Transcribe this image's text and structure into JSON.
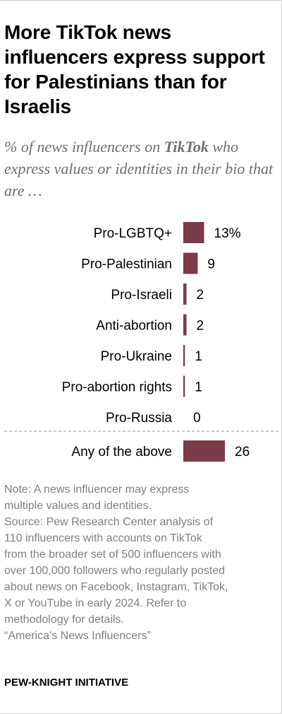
{
  "title": "More TikTok news influencers express support for Palestinians than for Israelis",
  "subtitle": {
    "prefix": "% of news influencers on ",
    "emphasis": "TikTok",
    "suffix": " who express values or identities in their bio that are …"
  },
  "chart_data": {
    "type": "bar",
    "orientation": "horizontal",
    "categories": [
      "Pro-LGBTQ+",
      "Pro-Palestinian",
      "Pro-Israeli",
      "Anti-abortion",
      "Pro-Ukraine",
      "Pro-abortion rights",
      "Pro-Russia"
    ],
    "values": [
      13,
      9,
      2,
      2,
      1,
      1,
      0
    ],
    "value_labels": [
      "13%",
      "9",
      "2",
      "2",
      "1",
      "1",
      "0"
    ],
    "summary": {
      "category": "Any of the above",
      "value": 26,
      "label": "26"
    },
    "bar_color": "#7b3b4b",
    "grid": false,
    "legend": "none"
  },
  "note_lines": [
    "Note: A news influencer may express",
    "multiple values and identities.",
    "Source: Pew Research Center analysis of",
    "110 influencers with accounts on TikTok",
    "from the broader set of 500 influencers with",
    "over 100,000 followers who regularly posted",
    "about news on Facebook, Instagram, TikTok,",
    "X or YouTube in early 2024. Refer to",
    "methodology for details.",
    "“America’s News Influencers”"
  ],
  "credit": "PEW-KNIGHT INITIATIVE"
}
